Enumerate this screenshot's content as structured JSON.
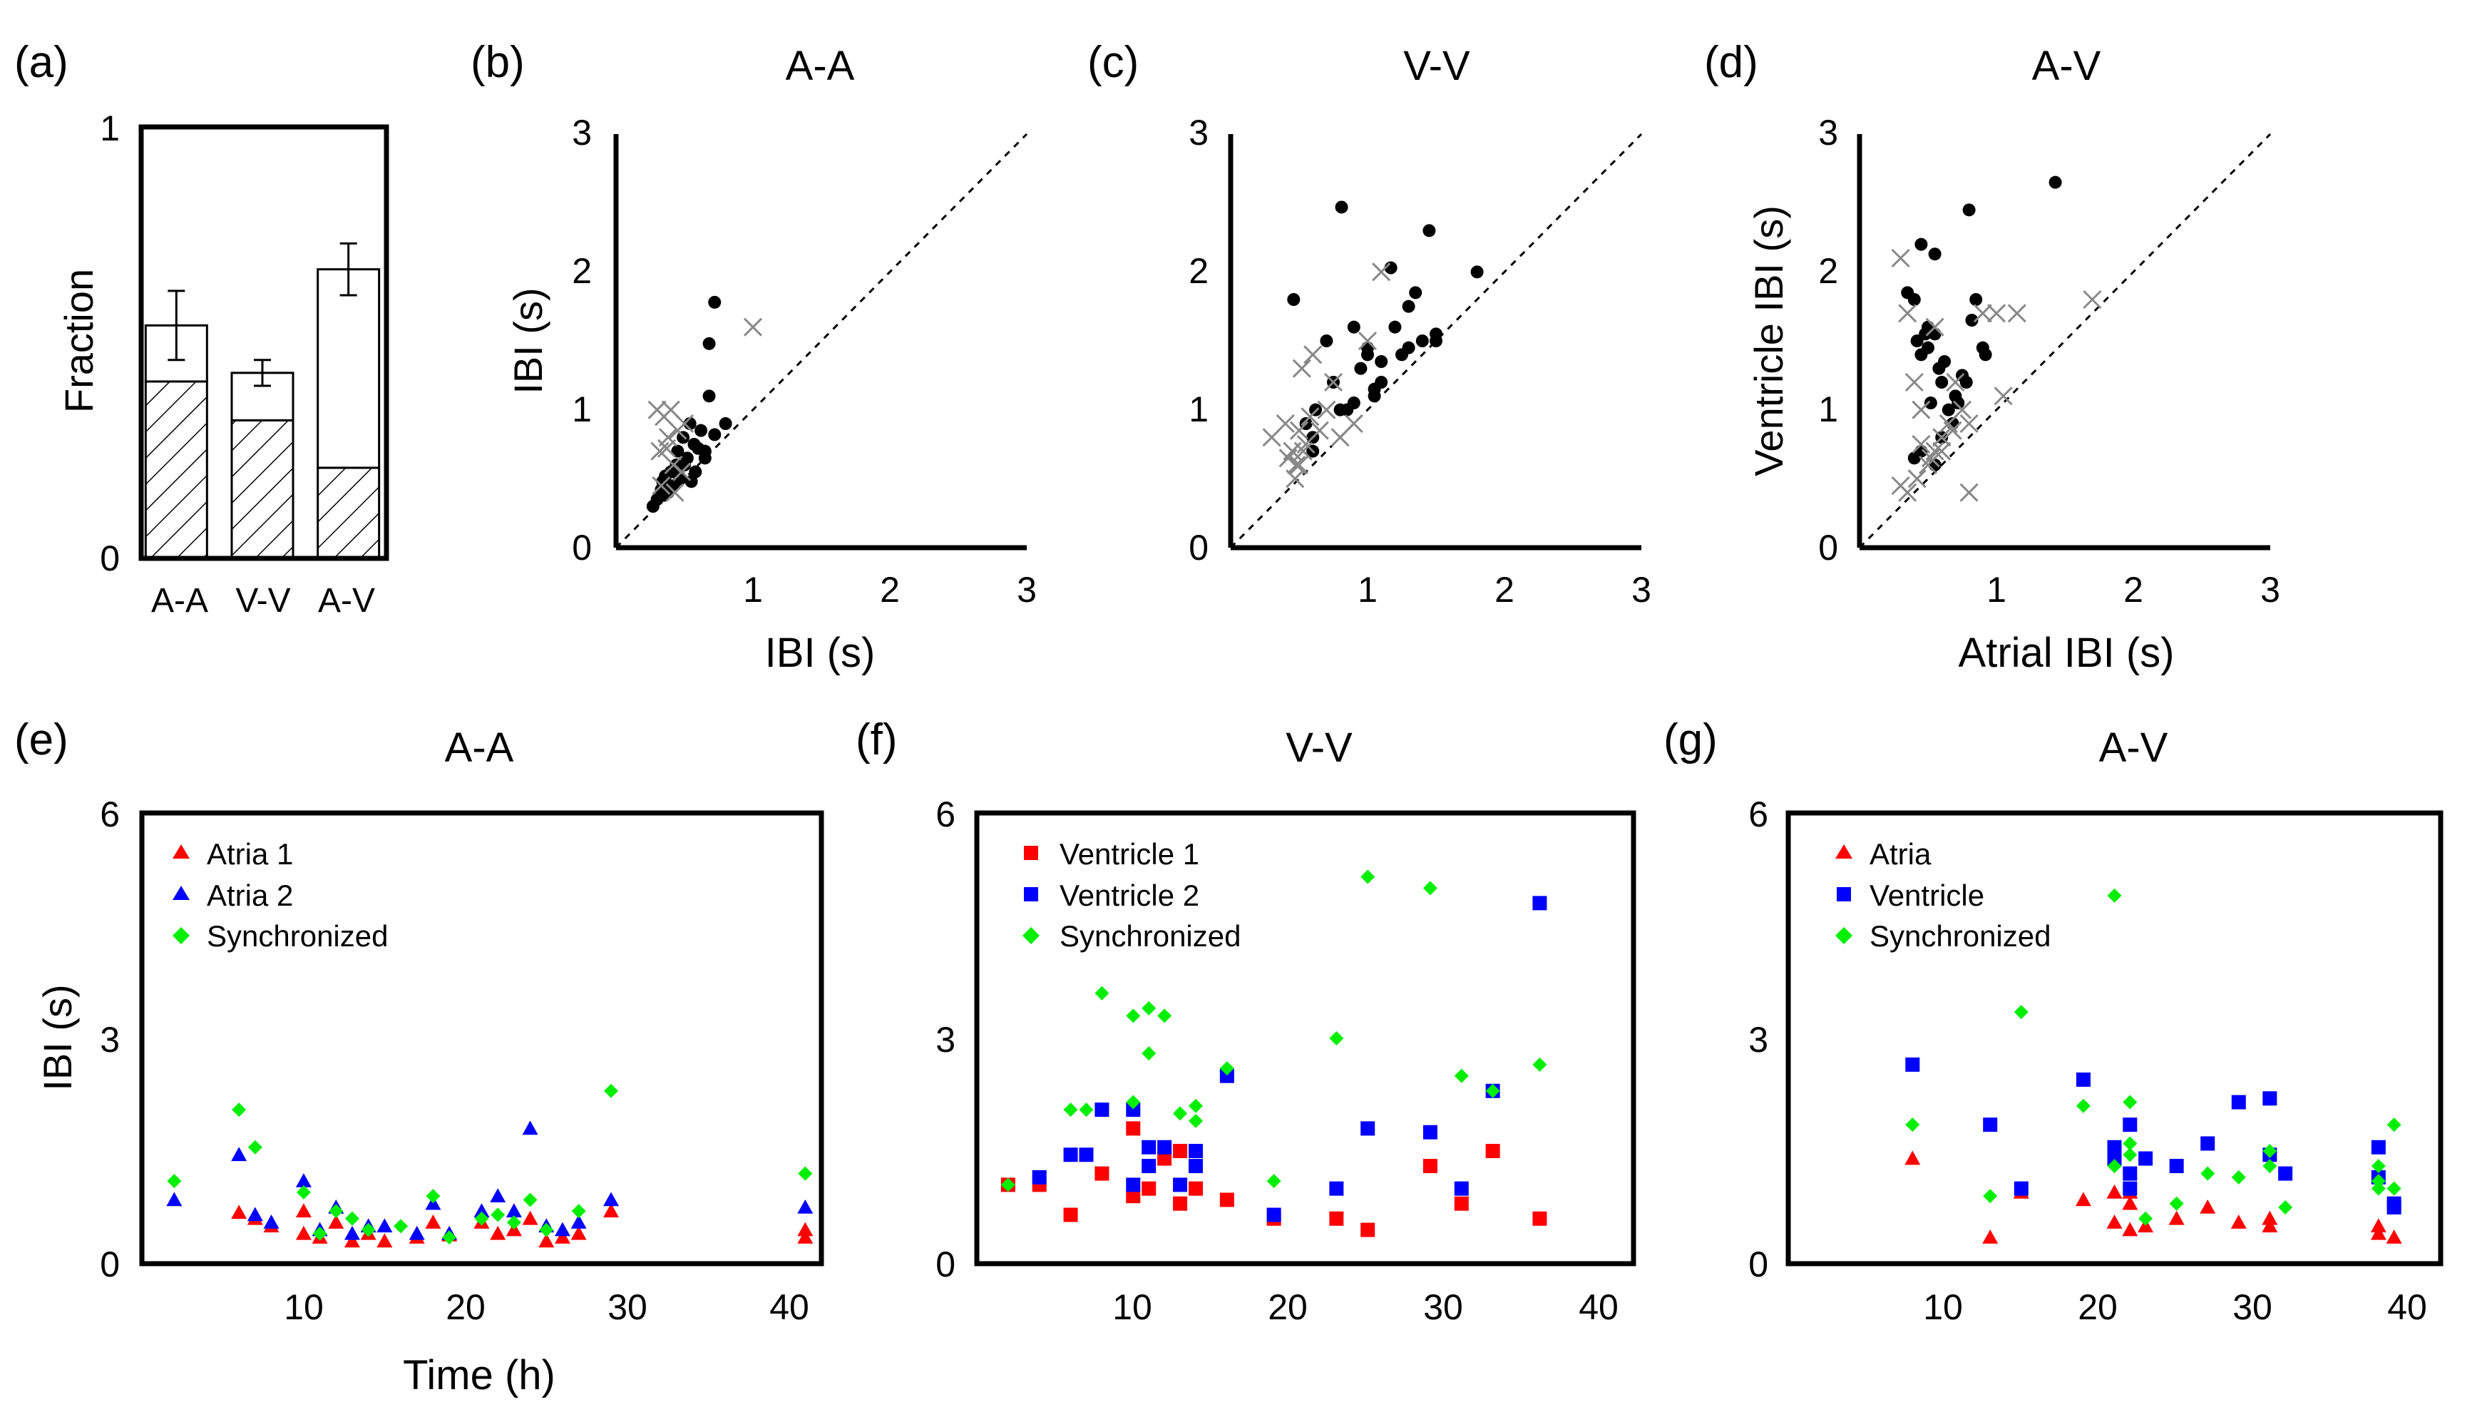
{
  "figure": {
    "panel_labels": [
      "(a)",
      "(b)",
      "(c)",
      "(d)",
      "(e)",
      "(f)",
      "(g)"
    ]
  },
  "chart_data": [
    {
      "id": "a",
      "type": "bar",
      "title": "",
      "xlabel": "",
      "ylabel": "Fraction",
      "categories": [
        "A-A",
        "V-V",
        "A-V"
      ],
      "ylim": [
        0,
        1
      ],
      "ytick_labels": [
        "0",
        "1"
      ],
      "series": [
        {
          "name": "total",
          "values": [
            0.54,
            0.43,
            0.67
          ],
          "err": [
            0.08,
            0.03,
            0.06
          ]
        },
        {
          "name": "hatched",
          "values": [
            0.41,
            0.32,
            0.21
          ]
        }
      ]
    },
    {
      "id": "b",
      "type": "scatter",
      "title": "A-A",
      "xlabel": "IBI (s)",
      "ylabel": "IBI (s)",
      "xlim": [
        0,
        3
      ],
      "ylim": [
        0,
        3
      ],
      "xtick_labels": [
        "1",
        "2",
        "3"
      ],
      "ytick_labels": [
        "0",
        "1",
        "2",
        "3"
      ],
      "diagonal": true,
      "series": [
        {
          "name": "dots",
          "marker": "dot",
          "color": "#000000",
          "x": [
            0.27,
            0.3,
            0.33,
            0.34,
            0.36,
            0.38,
            0.4,
            0.42,
            0.44,
            0.45,
            0.47,
            0.49,
            0.52,
            0.54,
            0.57,
            0.6,
            0.62,
            0.65,
            0.5,
            0.55,
            0.58,
            0.65,
            0.68,
            0.72,
            0.8,
            0.68,
            0.72,
            0.35,
            0.39,
            0.46
          ],
          "y": [
            0.3,
            0.35,
            0.42,
            0.48,
            0.52,
            0.4,
            0.55,
            0.45,
            0.6,
            0.7,
            0.5,
            0.8,
            0.65,
            0.9,
            0.75,
            0.72,
            0.85,
            0.7,
            0.6,
            0.48,
            0.55,
            0.65,
            1.1,
            0.82,
            0.9,
            1.48,
            1.78,
            0.38,
            0.45,
            0.52
          ]
        },
        {
          "name": "crosses",
          "marker": "x",
          "color": "#888888",
          "x": [
            0.3,
            0.32,
            0.35,
            0.38,
            0.4,
            0.42,
            0.45,
            0.48,
            0.33,
            0.37,
            0.43,
            0.5,
            1.0
          ],
          "y": [
            1.0,
            0.7,
            0.95,
            0.8,
            1.0,
            0.6,
            0.85,
            0.55,
            0.45,
            0.72,
            0.4,
            0.9,
            1.6
          ]
        }
      ]
    },
    {
      "id": "c",
      "type": "scatter",
      "title": "V-V",
      "xlabel": "",
      "ylabel": "",
      "xlim": [
        0,
        3
      ],
      "ylim": [
        0,
        3
      ],
      "xtick_labels": [
        "1",
        "2",
        "3"
      ],
      "ytick_labels": [
        "0",
        "1",
        "2",
        "3"
      ],
      "diagonal": true,
      "series": [
        {
          "name": "dots",
          "marker": "dot",
          "color": "#000000",
          "x": [
            0.81,
            0.46,
            0.6,
            0.6,
            0.85,
            0.9,
            1.0,
            1.05,
            1.1,
            1.17,
            1.25,
            1.3,
            1.35,
            1.4,
            1.45,
            1.5,
            0.7,
            0.8,
            0.9,
            1.0,
            1.05,
            1.1,
            1.2,
            1.3,
            1.5,
            1.8,
            0.55,
            0.62,
            0.75,
            0.95
          ],
          "y": [
            2.47,
            1.8,
            0.8,
            0.7,
            1.0,
            1.6,
            1.45,
            1.15,
            1.2,
            2.03,
            1.4,
            1.75,
            1.85,
            1.5,
            2.3,
            1.55,
            1.5,
            1.0,
            1.05,
            1.4,
            1.1,
            1.35,
            1.6,
            1.45,
            1.5,
            2.0,
            0.9,
            1.0,
            1.2,
            1.3
          ]
        },
        {
          "name": "crosses",
          "marker": "x",
          "color": "#888888",
          "x": [
            0.3,
            0.4,
            0.45,
            0.48,
            0.5,
            0.52,
            0.55,
            0.58,
            0.42,
            0.47,
            0.53,
            0.65,
            0.75,
            0.8,
            0.9,
            1.0,
            1.1,
            0.6,
            0.5,
            0.7
          ],
          "y": [
            0.8,
            0.9,
            0.7,
            0.6,
            0.85,
            1.3,
            0.75,
            0.95,
            0.65,
            0.5,
            0.7,
            0.85,
            1.2,
            0.8,
            0.9,
            1.5,
            2.0,
            1.4,
            0.6,
            1.0
          ]
        }
      ]
    },
    {
      "id": "d",
      "type": "scatter",
      "title": "A-V",
      "xlabel": "Atrial IBI (s)",
      "ylabel": "Ventricle IBI (s)",
      "xlim": [
        0,
        3
      ],
      "ylim": [
        0,
        3
      ],
      "xtick_labels": [
        "1",
        "2",
        "3"
      ],
      "ytick_labels": [
        "0",
        "1",
        "2",
        "3"
      ],
      "diagonal": true,
      "series": [
        {
          "name": "dots",
          "marker": "dot",
          "color": "#000000",
          "x": [
            1.43,
            0.8,
            0.45,
            0.5,
            0.55,
            0.35,
            0.4,
            0.42,
            0.45,
            0.48,
            0.5,
            0.55,
            0.58,
            0.6,
            0.62,
            0.65,
            0.7,
            0.75,
            0.78,
            0.82,
            0.85,
            0.9,
            0.92,
            0.4,
            0.45,
            0.52,
            0.6,
            0.68,
            0.72,
            0.55
          ],
          "y": [
            2.65,
            2.45,
            2.2,
            1.45,
            2.13,
            1.85,
            1.8,
            1.5,
            1.4,
            1.55,
            1.6,
            1.55,
            1.3,
            1.2,
            1.35,
            1.0,
            1.1,
            1.25,
            1.2,
            1.65,
            1.8,
            1.45,
            1.4,
            0.65,
            0.7,
            1.05,
            0.8,
            0.9,
            1.05,
            0.6
          ]
        },
        {
          "name": "crosses",
          "marker": "x",
          "color": "#888888",
          "x": [
            0.3,
            0.35,
            0.4,
            0.45,
            0.5,
            0.55,
            0.6,
            0.65,
            0.42,
            0.52,
            0.7,
            0.75,
            0.8,
            0.9,
            1.0,
            1.05,
            1.15,
            1.7,
            0.8,
            0.6,
            0.35,
            0.3,
            0.55,
            0.45,
            0.68
          ],
          "y": [
            2.1,
            1.7,
            1.2,
            1.0,
            0.6,
            0.7,
            0.8,
            0.9,
            0.5,
            0.65,
            1.2,
            1.0,
            0.4,
            1.7,
            1.7,
            1.1,
            1.7,
            1.8,
            0.9,
            0.7,
            0.4,
            0.45,
            1.6,
            0.75,
            0.85
          ]
        }
      ]
    },
    {
      "id": "e",
      "type": "scatter",
      "title": "A-A",
      "xlabel": "Time (h)",
      "ylabel": "IBI (s)",
      "xlim": [
        0,
        42
      ],
      "ylim": [
        0,
        6
      ],
      "xtick_labels": [
        "10",
        "20",
        "30",
        "40"
      ],
      "ytick_labels": [
        "0",
        "3",
        "6"
      ],
      "legend": [
        "Atria 1",
        "Atria 2",
        "Synchronized"
      ],
      "series": [
        {
          "name": "Atria 1",
          "marker": "triangle",
          "color": "#ff0000",
          "x": [
            6,
            7,
            8,
            10,
            10,
            11,
            12,
            13,
            14,
            15,
            17,
            18,
            19,
            21,
            22,
            23,
            24,
            25,
            26,
            27,
            29,
            41,
            41
          ],
          "y": [
            0.68,
            0.6,
            0.5,
            0.7,
            0.4,
            0.35,
            0.55,
            0.3,
            0.4,
            0.3,
            0.35,
            0.55,
            0.38,
            0.55,
            0.4,
            0.45,
            0.6,
            0.3,
            0.35,
            0.4,
            0.7,
            0.35,
            0.45
          ]
        },
        {
          "name": "Atria 2",
          "marker": "triangle",
          "color": "#0000ff",
          "x": [
            2,
            6,
            7,
            8,
            10,
            11,
            12,
            13,
            14,
            15,
            17,
            18,
            19,
            21,
            22,
            23,
            24,
            25,
            26,
            27,
            29,
            41
          ],
          "y": [
            0.85,
            1.45,
            0.65,
            0.55,
            1.1,
            0.45,
            0.75,
            0.4,
            0.5,
            0.5,
            0.4,
            0.8,
            0.4,
            0.7,
            0.9,
            0.7,
            1.8,
            0.5,
            0.45,
            0.55,
            0.85,
            0.75
          ]
        },
        {
          "name": "Synchronized",
          "marker": "diamond",
          "color": "#00ee00",
          "x": [
            2,
            6,
            7,
            10,
            11,
            12,
            13,
            14,
            16,
            18,
            19,
            21,
            22,
            23,
            24,
            25,
            27,
            29,
            41
          ],
          "y": [
            1.1,
            2.05,
            1.55,
            0.95,
            0.4,
            0.7,
            0.6,
            0.45,
            0.5,
            0.9,
            0.35,
            0.6,
            0.65,
            0.55,
            0.85,
            0.45,
            0.7,
            2.3,
            1.2
          ]
        }
      ]
    },
    {
      "id": "f",
      "type": "scatter",
      "title": "V-V",
      "xlabel": "",
      "ylabel": "",
      "xlim": [
        0,
        42
      ],
      "ylim": [
        0,
        6
      ],
      "xtick_labels": [
        "10",
        "20",
        "30",
        "40"
      ],
      "ytick_labels": [
        "0",
        "3",
        "6"
      ],
      "legend": [
        "Ventricle 1",
        "Ventricle 2",
        "Synchronized"
      ],
      "series": [
        {
          "name": "Ventricle 1",
          "marker": "square",
          "color": "#ff0000",
          "x": [
            2,
            4,
            6,
            8,
            10,
            10,
            11,
            12,
            13,
            13,
            14,
            16,
            19,
            23,
            25,
            29,
            31,
            33,
            36
          ],
          "y": [
            1.05,
            1.05,
            0.65,
            1.2,
            0.9,
            1.8,
            1.0,
            1.4,
            0.8,
            1.5,
            1.0,
            0.85,
            0.6,
            0.6,
            0.45,
            1.3,
            0.8,
            1.5,
            0.6
          ]
        },
        {
          "name": "Ventricle 2",
          "marker": "square",
          "color": "#0000ff",
          "x": [
            4,
            6,
            7,
            8,
            10,
            10,
            11,
            11,
            12,
            13,
            14,
            14,
            16,
            19,
            23,
            25,
            29,
            31,
            33,
            36
          ],
          "y": [
            1.15,
            1.45,
            1.45,
            2.05,
            1.05,
            2.05,
            1.55,
            1.3,
            1.55,
            1.05,
            1.5,
            1.3,
            2.5,
            0.65,
            1.0,
            1.8,
            1.75,
            1.0,
            2.3,
            4.8
          ]
        },
        {
          "name": "Synchronized",
          "marker": "diamond",
          "color": "#00ee00",
          "x": [
            2,
            6,
            7,
            8,
            10,
            10,
            11,
            11,
            12,
            13,
            14,
            14,
            16,
            19,
            23,
            25,
            29,
            31,
            33,
            36
          ],
          "y": [
            1.05,
            2.05,
            2.05,
            3.6,
            2.15,
            3.3,
            3.4,
            2.8,
            3.3,
            2.0,
            2.1,
            1.9,
            2.6,
            1.1,
            3.0,
            5.15,
            5.0,
            2.5,
            2.3,
            2.65
          ]
        }
      ]
    },
    {
      "id": "g",
      "type": "scatter",
      "title": "A-V",
      "xlabel": "",
      "ylabel": "",
      "xlim": [
        0,
        42
      ],
      "ylim": [
        0,
        6
      ],
      "xtick_labels": [
        "10",
        "20",
        "30",
        "40"
      ],
      "ytick_labels": [
        "0",
        "3",
        "6"
      ],
      "legend": [
        "Atria",
        "Ventricle",
        "Synchronized"
      ],
      "series": [
        {
          "name": "Atria",
          "marker": "triangle",
          "color": "#ff0000",
          "x": [
            8,
            13,
            15,
            19,
            21,
            21,
            22,
            22,
            22,
            23,
            25,
            27,
            29,
            31,
            31,
            38,
            38,
            39
          ],
          "y": [
            1.4,
            0.35,
            0.95,
            0.85,
            0.55,
            0.95,
            0.8,
            0.45,
            0.95,
            0.5,
            0.6,
            0.75,
            0.55,
            0.5,
            0.6,
            0.4,
            0.5,
            0.35
          ]
        },
        {
          "name": "Ventricle",
          "marker": "square",
          "color": "#0000ff",
          "x": [
            8,
            13,
            15,
            19,
            21,
            21,
            22,
            22,
            22,
            23,
            25,
            27,
            29,
            31,
            31,
            32,
            38,
            38,
            39,
            39
          ],
          "y": [
            2.65,
            1.85,
            1.0,
            2.45,
            1.55,
            1.4,
            1.85,
            1.2,
            1.0,
            1.4,
            1.3,
            1.6,
            2.15,
            2.2,
            1.45,
            1.2,
            1.55,
            1.15,
            0.75,
            0.8
          ]
        },
        {
          "name": "Synchronized",
          "marker": "diamond",
          "color": "#00ee00",
          "x": [
            8,
            13,
            15,
            19,
            21,
            21,
            22,
            22,
            22,
            23,
            25,
            27,
            29,
            31,
            31,
            32,
            38,
            38,
            38,
            39,
            39
          ],
          "y": [
            1.85,
            0.9,
            3.35,
            2.1,
            4.9,
            1.3,
            2.15,
            1.45,
            1.6,
            0.6,
            0.8,
            1.2,
            1.15,
            1.3,
            1.5,
            0.75,
            1.0,
            1.3,
            1.1,
            1.85,
            1.0
          ]
        }
      ]
    }
  ]
}
